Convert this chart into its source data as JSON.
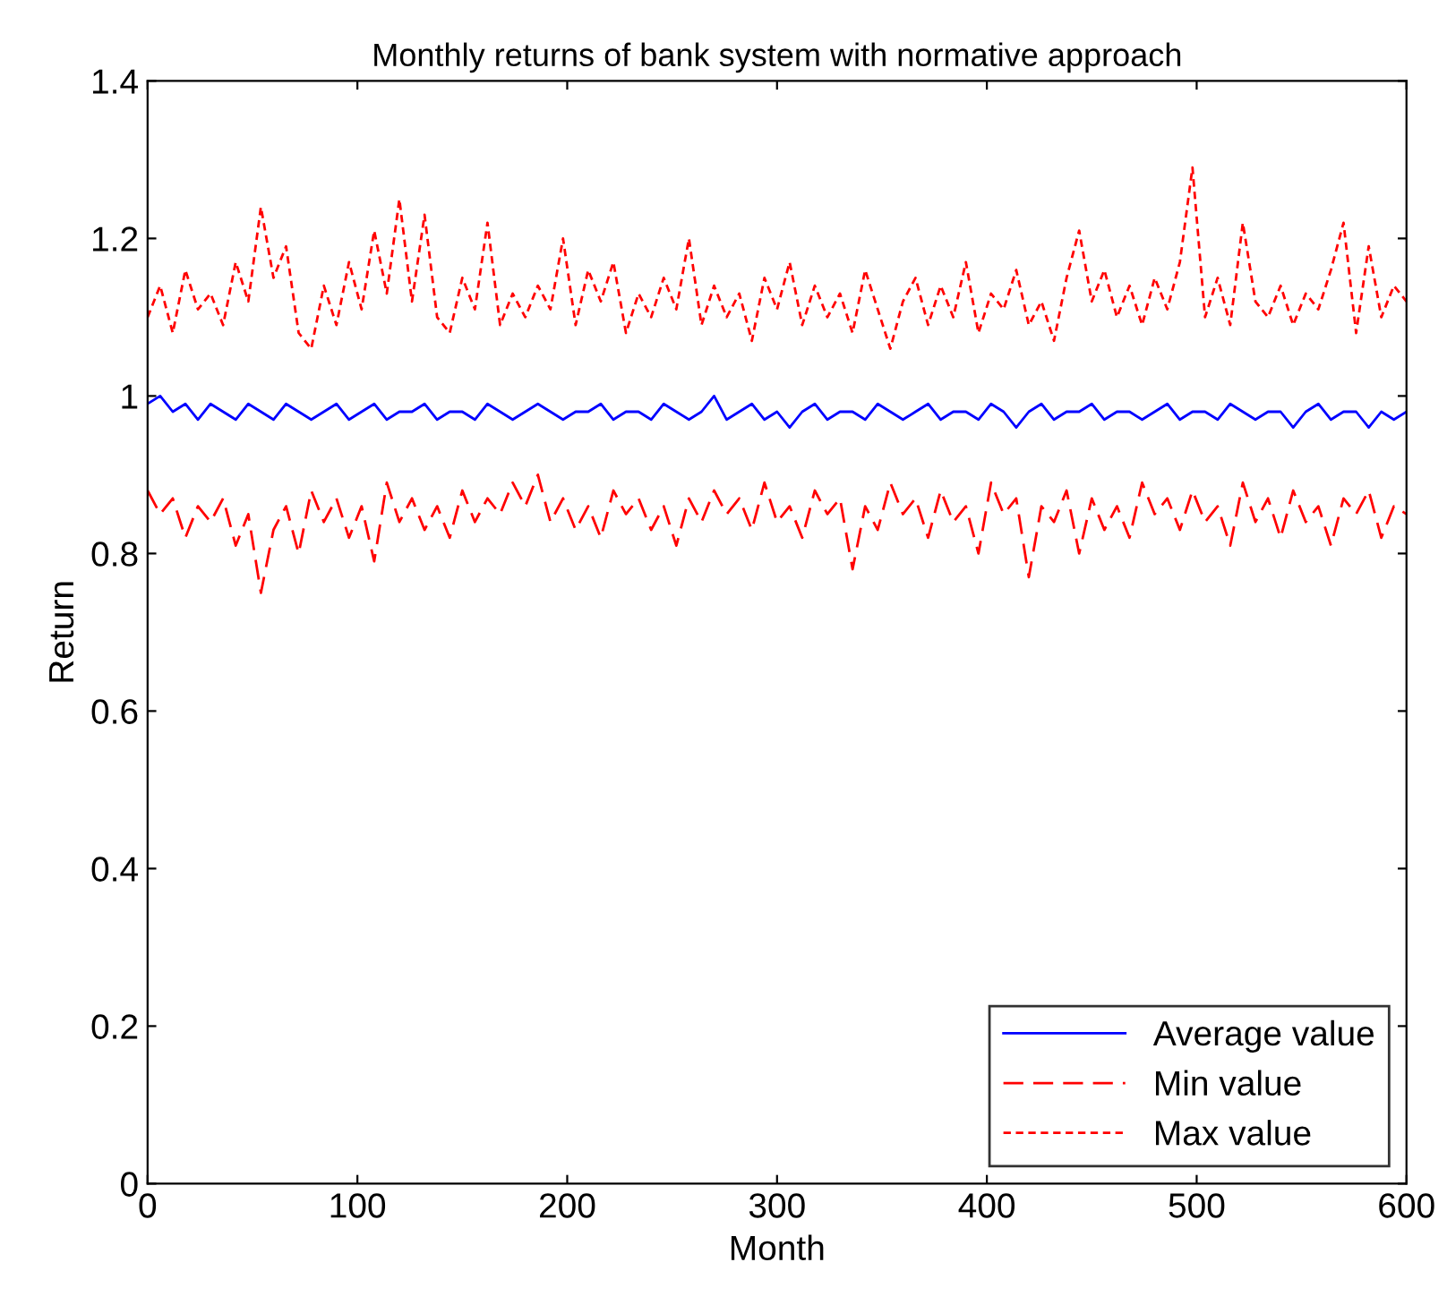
{
  "chart_data": {
    "type": "line",
    "title": "Monthly returns of bank system with normative approach",
    "xlabel": "Month",
    "ylabel": "Return",
    "x": [
      0,
      6,
      12,
      18,
      24,
      30,
      36,
      42,
      48,
      54,
      60,
      66,
      72,
      78,
      84,
      90,
      96,
      102,
      108,
      114,
      120,
      126,
      132,
      138,
      144,
      150,
      156,
      162,
      168,
      174,
      180,
      186,
      192,
      198,
      204,
      210,
      216,
      222,
      228,
      234,
      240,
      246,
      252,
      258,
      264,
      270,
      276,
      282,
      288,
      294,
      300,
      306,
      312,
      318,
      324,
      330,
      336,
      342,
      348,
      354,
      360,
      366,
      372,
      378,
      384,
      390,
      396,
      402,
      408,
      414,
      420,
      426,
      432,
      438,
      444,
      450,
      456,
      462,
      468,
      474,
      480,
      486,
      492,
      498,
      504,
      510,
      516,
      522,
      528,
      534,
      540,
      546,
      552,
      558,
      564,
      570,
      576,
      582,
      588,
      594,
      600
    ],
    "series": [
      {
        "name": "Average value",
        "color": "#0000ff",
        "line_style": "solid",
        "values": [
          0.99,
          1.0,
          0.98,
          0.99,
          0.97,
          0.99,
          0.98,
          0.97,
          0.99,
          0.98,
          0.97,
          0.99,
          0.98,
          0.97,
          0.98,
          0.99,
          0.97,
          0.98,
          0.99,
          0.97,
          0.98,
          0.98,
          0.99,
          0.97,
          0.98,
          0.98,
          0.97,
          0.99,
          0.98,
          0.97,
          0.98,
          0.99,
          0.98,
          0.97,
          0.98,
          0.98,
          0.99,
          0.97,
          0.98,
          0.98,
          0.97,
          0.99,
          0.98,
          0.97,
          0.98,
          1.0,
          0.97,
          0.98,
          0.99,
          0.97,
          0.98,
          0.96,
          0.98,
          0.99,
          0.97,
          0.98,
          0.98,
          0.97,
          0.99,
          0.98,
          0.97,
          0.98,
          0.99,
          0.97,
          0.98,
          0.98,
          0.97,
          0.99,
          0.98,
          0.96,
          0.98,
          0.99,
          0.97,
          0.98,
          0.98,
          0.99,
          0.97,
          0.98,
          0.98,
          0.97,
          0.98,
          0.99,
          0.97,
          0.98,
          0.98,
          0.97,
          0.99,
          0.98,
          0.97,
          0.98,
          0.98,
          0.96,
          0.98,
          0.99,
          0.97,
          0.98,
          0.98,
          0.96,
          0.98,
          0.97,
          0.98
        ]
      },
      {
        "name": "Min value",
        "color": "#ff0000",
        "line_style": "dashed",
        "values": [
          0.88,
          0.85,
          0.87,
          0.82,
          0.86,
          0.84,
          0.87,
          0.81,
          0.85,
          0.75,
          0.83,
          0.86,
          0.8,
          0.88,
          0.84,
          0.87,
          0.82,
          0.86,
          0.79,
          0.89,
          0.84,
          0.87,
          0.83,
          0.86,
          0.82,
          0.88,
          0.84,
          0.87,
          0.85,
          0.89,
          0.86,
          0.9,
          0.84,
          0.87,
          0.83,
          0.86,
          0.82,
          0.88,
          0.85,
          0.87,
          0.83,
          0.86,
          0.81,
          0.87,
          0.84,
          0.88,
          0.85,
          0.87,
          0.83,
          0.89,
          0.84,
          0.86,
          0.82,
          0.88,
          0.85,
          0.87,
          0.78,
          0.86,
          0.83,
          0.89,
          0.85,
          0.87,
          0.82,
          0.88,
          0.84,
          0.86,
          0.8,
          0.89,
          0.85,
          0.87,
          0.77,
          0.86,
          0.84,
          0.88,
          0.8,
          0.87,
          0.83,
          0.86,
          0.82,
          0.89,
          0.85,
          0.87,
          0.83,
          0.88,
          0.84,
          0.86,
          0.81,
          0.89,
          0.84,
          0.87,
          0.82,
          0.88,
          0.84,
          0.86,
          0.81,
          0.87,
          0.85,
          0.88,
          0.82,
          0.86,
          0.85
        ]
      },
      {
        "name": "Max value",
        "color": "#ff0000",
        "line_style": "dotted",
        "values": [
          1.1,
          1.14,
          1.08,
          1.16,
          1.11,
          1.13,
          1.09,
          1.17,
          1.12,
          1.24,
          1.15,
          1.19,
          1.08,
          1.06,
          1.14,
          1.09,
          1.17,
          1.11,
          1.21,
          1.13,
          1.25,
          1.12,
          1.23,
          1.1,
          1.08,
          1.15,
          1.11,
          1.22,
          1.09,
          1.13,
          1.1,
          1.14,
          1.11,
          1.2,
          1.09,
          1.16,
          1.12,
          1.17,
          1.08,
          1.13,
          1.1,
          1.15,
          1.11,
          1.2,
          1.09,
          1.14,
          1.1,
          1.13,
          1.07,
          1.15,
          1.11,
          1.17,
          1.09,
          1.14,
          1.1,
          1.13,
          1.08,
          1.16,
          1.11,
          1.06,
          1.12,
          1.15,
          1.09,
          1.14,
          1.1,
          1.17,
          1.08,
          1.13,
          1.11,
          1.16,
          1.09,
          1.12,
          1.07,
          1.15,
          1.21,
          1.12,
          1.16,
          1.1,
          1.14,
          1.09,
          1.15,
          1.11,
          1.17,
          1.29,
          1.1,
          1.15,
          1.09,
          1.22,
          1.12,
          1.1,
          1.14,
          1.09,
          1.13,
          1.11,
          1.16,
          1.22,
          1.08,
          1.19,
          1.1,
          1.14,
          1.12
        ]
      }
    ],
    "xlim": [
      0,
      600
    ],
    "xticks": [
      0,
      100,
      200,
      300,
      400,
      500,
      600
    ],
    "ylim": [
      0,
      1.4
    ],
    "yticks": [
      0,
      0.2,
      0.4,
      0.6,
      0.8,
      1,
      1.2,
      1.4
    ],
    "grid": false,
    "legend": "bottom right",
    "marker": "none"
  }
}
